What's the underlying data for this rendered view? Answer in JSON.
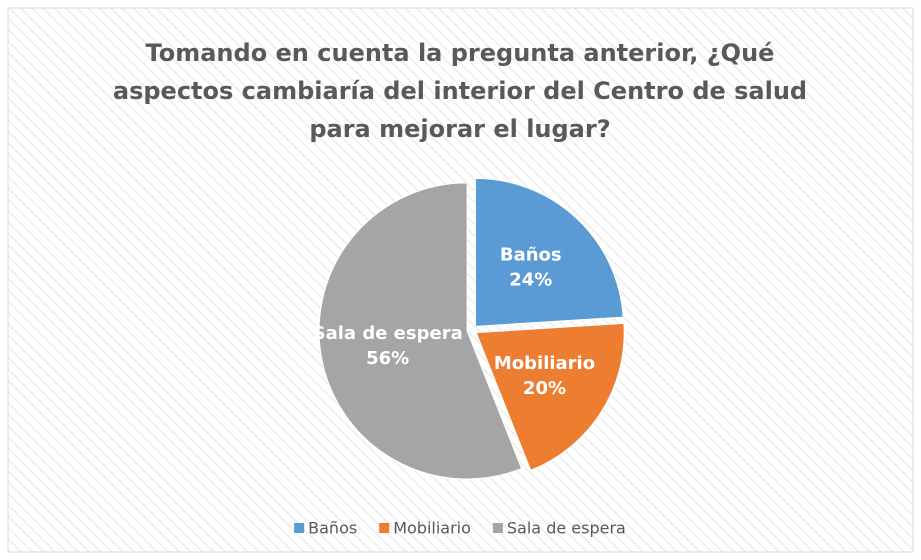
{
  "chart_data": {
    "type": "pie",
    "title": "Tomando en cuenta la pregunta anterior, ¿Qué aspectos cambiaría del interior del Centro de salud para mejorar el lugar?",
    "categories": [
      "Baños",
      "Mobiliario",
      "Sala de espera"
    ],
    "values": [
      24,
      20,
      56
    ],
    "value_labels": [
      "24%",
      "20%",
      "56%"
    ],
    "colors": [
      "#5b9bd5",
      "#ed7d31",
      "#a5a5a5"
    ],
    "legend": "bottom"
  }
}
